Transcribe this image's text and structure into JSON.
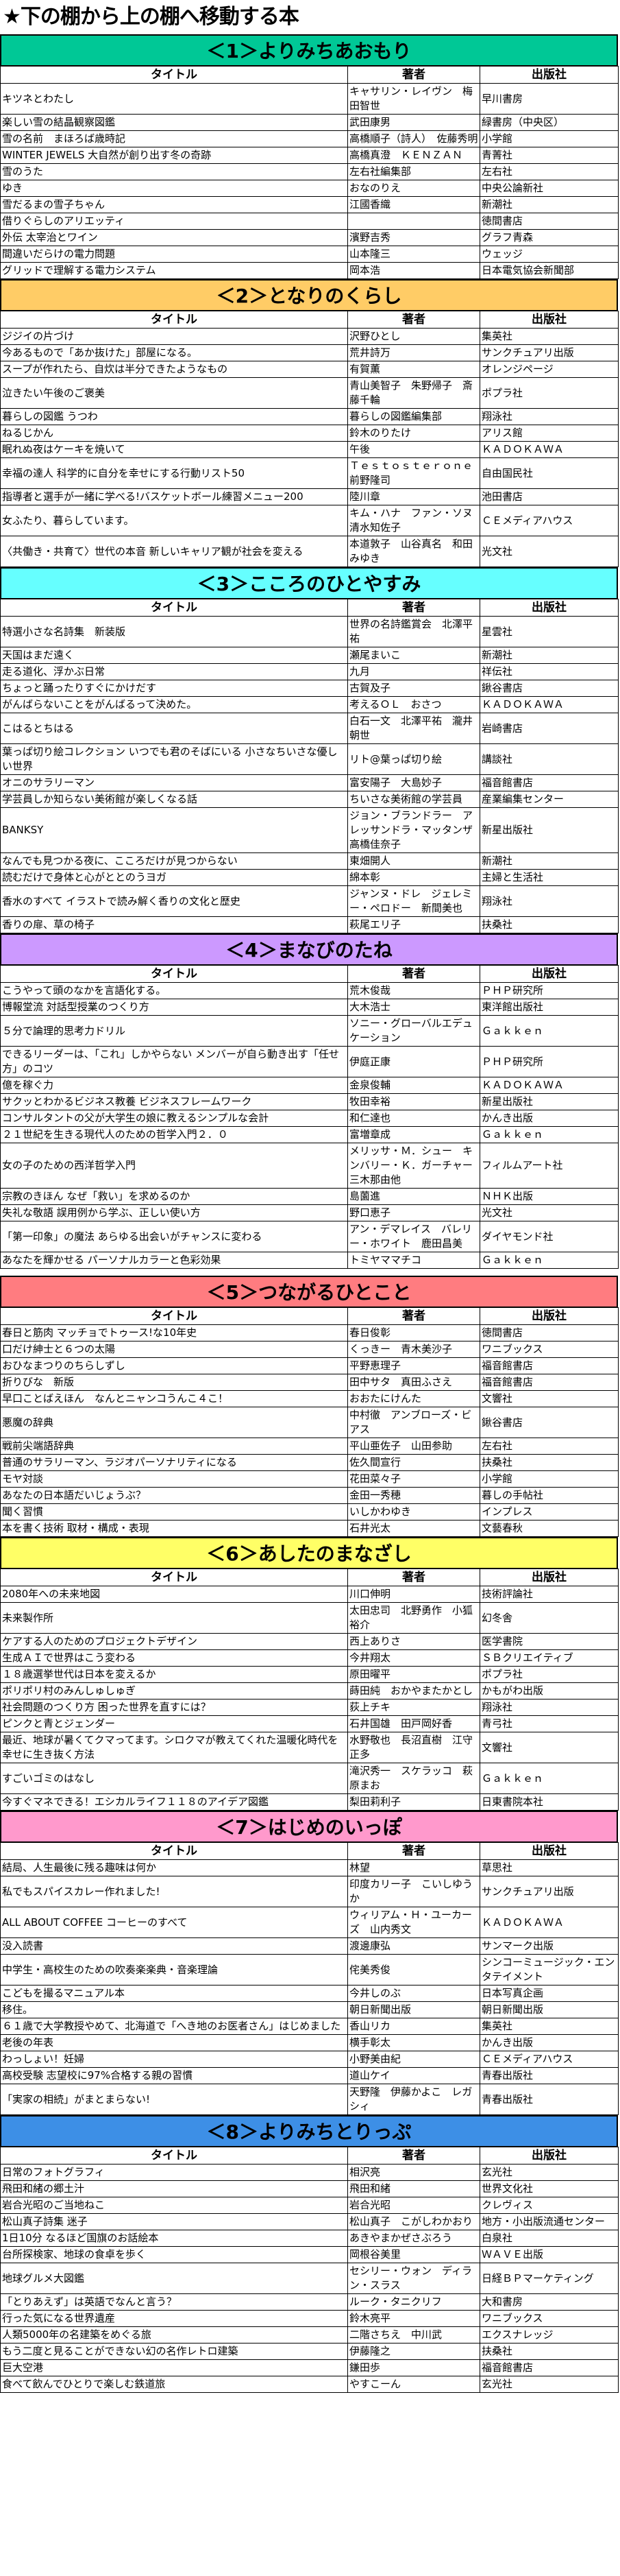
{
  "page_title": "★下の棚から上の棚へ移動する本",
  "columns": {
    "title": "タイトル",
    "author": "著者",
    "publisher": "出版社"
  },
  "sections": [
    {
      "heading": "＜1＞よりみちあおもり",
      "color": "#00C896",
      "rows": [
        [
          "キツネとわたし",
          "キャサリン・レイヴン　梅田智世",
          "早川書房"
        ],
        [
          "楽しい雪の結晶観察図鑑",
          "武田康男",
          "緑書房（中央区）"
        ],
        [
          "雪の名前　まほろば歳時記",
          "高橋順子（詩人）　佐藤秀明",
          "小学館"
        ],
        [
          "WINTER JEWELS 大自然が創り出す冬の奇跡",
          "高橋真澄　ＫＥＮＺＡＮ",
          "青菁社"
        ],
        [
          "雪のうた",
          "左右社編集部",
          "左右社"
        ],
        [
          "ゆき",
          "おなのりえ",
          "中央公論新社"
        ],
        [
          "雪だるまの雪子ちゃん",
          "江國香織",
          "新潮社"
        ],
        [
          "借りぐらしのアリエッティ",
          "",
          "徳間書店"
        ],
        [
          "外伝 太宰治とワイン",
          "濱野吉秀",
          "グラフ青森"
        ],
        [
          "間違いだらけの電力問題",
          "山本隆三",
          "ウェッジ"
        ],
        [
          "グリッドで理解する電力システム",
          "岡本浩",
          "日本電気協会新聞部"
        ]
      ]
    },
    {
      "heading": "＜2＞となりのくらし",
      "color": "#FFCC66",
      "rows": [
        [
          "ジジイの片づけ",
          "沢野ひとし",
          "集英社"
        ],
        [
          "今あるもので「あか抜けた」部屋になる。",
          "荒井詩万",
          "サンクチュアリ出版"
        ],
        [
          "スープが作れたら、自炊は半分できたようなもの",
          "有賀薫",
          "オレンジページ"
        ],
        [
          "泣きたい午後のご褒美",
          "青山美智子　朱野帰子　斎藤千輪",
          "ポプラ社"
        ],
        [
          "暮らしの図鑑 うつわ",
          "暮らしの図鑑編集部",
          "翔泳社"
        ],
        [
          "ねるじかん",
          "鈴木のりたけ",
          "アリス館"
        ],
        [
          "眠れぬ夜はケーキを焼いて",
          "午後",
          "ＫＡＤＯＫＡＷＡ"
        ],
        [
          "幸福の達人 科学的に自分を幸せにする行動リスト50",
          "Ｔｅｓｔｏｓｔｅｒｏｎｅ　前野隆司",
          "自由国民社"
        ],
        [
          "指導者と選手が一緒に学べる!バスケットボール練習メニュー200",
          "陸川章",
          "池田書店"
        ],
        [
          "女ふたり、暮らしています。",
          "キム・ハナ　ファン・ソヌ　清水知佐子",
          "ＣＥメディアハウス"
        ],
        [
          "〈共働き・共育て〉世代の本音 新しいキャリア観が社会を変える",
          "本道敦子　山谷真名　和田みゆき",
          "光文社"
        ]
      ]
    },
    {
      "heading": "＜3＞こころのひとやすみ",
      "color": "#66FFFF",
      "rows": [
        [
          "特選小さな名詩集　新装版",
          "世界の名詩鑑賞会　北澤平祐",
          "星雲社"
        ],
        [
          "天国はまだ遠く",
          "瀬尾まいこ",
          "新潮社"
        ],
        [
          "走る道化、浮かぶ日常",
          "九月",
          "祥伝社"
        ],
        [
          "ちょっと踊ったりすぐにかけだす",
          "古賀及子",
          "鍬谷書店"
        ],
        [
          "がんばらないことをがんばるって決めた。",
          "考えるＯＬ　おさつ",
          "ＫＡＤＯＫＡＷＡ"
        ],
        [
          "こはるとちはる",
          "白石一文　北澤平祐　瀧井朝世",
          "岩崎書店"
        ],
        [
          "葉っぱ切り絵コレクション いつでも君のそばにいる 小さなちいさな優しい世界",
          "リト@葉っぱ切り絵",
          "講談社"
        ],
        [
          "オニのサラリーマン",
          "富安陽子　大島妙子",
          "福音館書店"
        ],
        [
          "学芸員しか知らない美術館が楽しくなる話",
          "ちいさな美術館の学芸員",
          "産業編集センター"
        ],
        [
          "BANKSY",
          "ジョン・ブランドラー　アレッサンドラ・マッタンザ　高橋佳奈子",
          "新星出版社"
        ],
        [
          "なんでも見つかる夜に、こころだけが見つからない",
          "東畑開人",
          "新潮社"
        ],
        [
          "読むだけで身体と心がととのうヨガ",
          "綿本彰",
          "主婦と生活社"
        ],
        [
          "香水のすべて イラストで読み解く香りの文化と歴史",
          "ジャンヌ・ドレ　ジェレミー・ペロドー　新間美也",
          "翔泳社"
        ],
        [
          "香りの扉、草の椅子",
          "萩尾エリ子",
          "扶桑社"
        ]
      ]
    },
    {
      "heading": "＜4＞まなびのたね",
      "color": "#CC99FF",
      "rows": [
        [
          "こうやって頭のなかを言語化する。",
          "荒木俊哉",
          "ＰＨＰ研究所"
        ],
        [
          "博報堂流 対話型授業のつくり方",
          "大木浩士",
          "東洋館出版社"
        ],
        [
          "５分で論理的思考力ドリル",
          "ソニー・グローバルエデュケーション",
          "Ｇａｋｋｅｎ"
        ],
        [
          "できるリーダーは、「これ」しかやらない メンバーが自ら動き出す「任せ方」のコツ",
          "伊庭正康",
          "ＰＨＰ研究所"
        ],
        [
          "億を稼ぐ力",
          "金泉俊輔",
          "ＫＡＤＯＫＡＷＡ"
        ],
        [
          "サクッとわかるビジネス教養 ビジネスフレームワーク",
          "牧田幸裕",
          "新星出版社"
        ],
        [
          "コンサルタントの父が大学生の娘に教えるシンプルな会計",
          "和仁達也",
          "かんき出版"
        ],
        [
          "２１世紀を生きる現代人のための哲学入門２．０",
          "富増章成",
          "Ｇａｋｋｅｎ"
        ],
        [
          "女の子のための西洋哲学入門",
          "メリッサ・Ｍ．シュー　キンバリー・Ｋ．ガーチャー　三木那由他",
          "フィルムアート社"
        ],
        [
          "宗教のきほん なぜ「救い」を求めるのか",
          "島薗進",
          "ＮＨＫ出版"
        ],
        [
          "失礼な敬語 誤用例から学ぶ、正しい使い方",
          "野口恵子",
          "光文社"
        ],
        [
          "「第一印象」の魔法 あらゆる出会いがチャンスに変わる",
          "アン・デマレイス　バレリー・ホワイト　鹿田昌美",
          "ダイヤモンド社"
        ],
        [
          "あなたを輝かせる パーソナルカラーと色彩効果",
          "トミヤママチコ",
          "Ｇａｋｋｅｎ"
        ]
      ]
    },
    {
      "heading": "＜5＞つながるひとこと",
      "color": "#FF7C80",
      "rows": [
        [
          "春日と筋肉 マッチョでトゥース!な10年史",
          "春日俊彰",
          "徳間書店"
        ],
        [
          "口だけ紳士と６つの太陽",
          "くっきー　青木美沙子",
          "ワニブックス"
        ],
        [
          "おひなまつりのちらしずし",
          "平野恵理子",
          "福音館書店"
        ],
        [
          "折りびな　新版",
          "田中サタ　真田ふさえ",
          "福音館書店"
        ],
        [
          "早口ことばえほん　なんとニャンコうんこ４こ！",
          "おおたにけんた",
          "文響社"
        ],
        [
          "悪魔の辞典",
          "中村徹　アンブローズ・ビアス",
          "鍬谷書店"
        ],
        [
          "戦前尖端語辞典",
          "平山亜佐子　山田参助",
          "左右社"
        ],
        [
          "普通のサラリーマン、ラジオパーソナリティになる",
          "佐久間宣行",
          "扶桑社"
        ],
        [
          "モヤ対談",
          "花田菜々子",
          "小学館"
        ],
        [
          "あなたの日本語だいじょうぶ？",
          "金田一秀穂",
          "暮しの手帖社"
        ],
        [
          "聞く習慣",
          "いしかわゆき",
          "インプレス"
        ],
        [
          "本を書く技術 取材・構成・表現",
          "石井光太",
          "文藝春秋"
        ]
      ]
    },
    {
      "heading": "＜6＞あしたのまなざし",
      "color": "#FFFF66",
      "rows": [
        [
          "2080年への未来地図",
          "川口伸明",
          "技術評論社"
        ],
        [
          "未来製作所",
          "太田忠司　北野勇作　小狐裕介",
          "幻冬舎"
        ],
        [
          "ケアする人のためのプロジェクトデザイン",
          "西上ありさ",
          "医学書院"
        ],
        [
          "生成ＡＩで世界はこう変わる",
          "今井翔太",
          "ＳＢクリエイティブ"
        ],
        [
          "１８歳選挙世代は日本を変えるか",
          "原田曜平",
          "ポプラ社"
        ],
        [
          "ポリポリ村のみんしゅしゅぎ",
          "蒔田純　おかやまたかとし",
          "かもがわ出版"
        ],
        [
          "社会問題のつくり方 困った世界を直すには？",
          "荻上チキ",
          "翔泳社"
        ],
        [
          "ピンクと青とジェンダー",
          "石井国雄　田戸岡好香",
          "青弓社"
        ],
        [
          "最近、地球が暑くてクマってます。シロクマが教えてくれた温暖化時代を幸せに生き抜く方法",
          "水野敬也　長沼直樹　江守正多",
          "文響社"
        ],
        [
          "すごいゴミのはなし",
          "滝沢秀一　スケラッコ　萩原まお",
          "Ｇａｋｋｅｎ"
        ],
        [
          "今すぐマネできる！エシカルライフ１１８のアイデア図鑑",
          "梨田莉利子",
          "日東書院本社"
        ]
      ]
    },
    {
      "heading": "＜7＞はじめのいっぽ",
      "color": "#FF99CC",
      "rows": [
        [
          "結局、人生最後に残る趣味は何か",
          "林望",
          "草思社"
        ],
        [
          "私でもスパイスカレー作れました!",
          "印度カリー子　こいしゆうか",
          "サンクチュアリ出版"
        ],
        [
          "ALL ABOUT COFFEE コーヒーのすべて",
          "ウィリアム・Ｈ・ユーカーズ　山内秀文",
          "ＫＡＤＯＫＡＷＡ"
        ],
        [
          "没入読書",
          "渡邊康弘",
          "サンマーク出版"
        ],
        [
          "中学生・高校生のための吹奏楽楽典・音楽理論",
          "侘美秀俊",
          "シンコーミュージック・エンタテイメント"
        ],
        [
          "こどもを撮るマニュアル本",
          "今井しのぶ",
          "日本写真企画"
        ],
        [
          "移住。",
          "朝日新聞出版",
          "朝日新聞出版"
        ],
        [
          "６１歳で大学教授やめて、北海道で「へき地のお医者さん」はじめました",
          "香山リカ",
          "集英社"
        ],
        [
          "老後の年表",
          "横手彰太",
          "かんき出版"
        ],
        [
          "わっしょい！妊婦",
          "小野美由紀",
          "ＣＥメディアハウス"
        ],
        [
          "高校受験 志望校に97%合格する親の習慣",
          "道山ケイ",
          "青春出版社"
        ],
        [
          "「実家の相続」がまとまらない!",
          "天野隆　伊藤かよこ　レガシィ",
          "青春出版社"
        ]
      ]
    },
    {
      "heading": "＜8＞よりみちとりっぷ",
      "color": "#3D8FE6",
      "rows": [
        [
          "日常のフォトグラフィ",
          "相沢亮",
          "玄光社"
        ],
        [
          "飛田和緒の郷土汁",
          "飛田和緒",
          "世界文化社"
        ],
        [
          "岩合光昭のご当地ねこ",
          "岩合光昭",
          "クレヴィス"
        ],
        [
          "松山真子詩集 迷子",
          "松山真子　こがしわかおり",
          "地方・小出版流通センター"
        ],
        [
          "1日10分 なるほど国旗のお話絵本",
          "あきやまかぜさぶろう",
          "白泉社"
        ],
        [
          "台所探検家、地球の食卓を歩く",
          "岡根谷美里",
          "ＷＡＶＥ出版"
        ],
        [
          "地球グルメ大図鑑",
          "セシリー・ウォン　ディラン・スラス",
          "日経ＢＰマーケティング"
        ],
        [
          "「とりあえず」は英語でなんと言う？",
          "ルーク・タニクリフ",
          "大和書房"
        ],
        [
          "行った気になる世界遺産",
          "鈴木亮平",
          "ワニブックス"
        ],
        [
          "人類5000年の名建築をめぐる旅",
          "二階さちえ　中川武",
          "エクスナレッジ"
        ],
        [
          "もう二度と見ることができない幻の名作レトロ建築",
          "伊藤隆之",
          "扶桑社"
        ],
        [
          "巨大空港",
          "鎌田歩",
          "福音館書店"
        ],
        [
          "食べて飲んでひとりで楽しむ鉄道旅",
          "やすこーん",
          "玄光社"
        ]
      ]
    }
  ]
}
